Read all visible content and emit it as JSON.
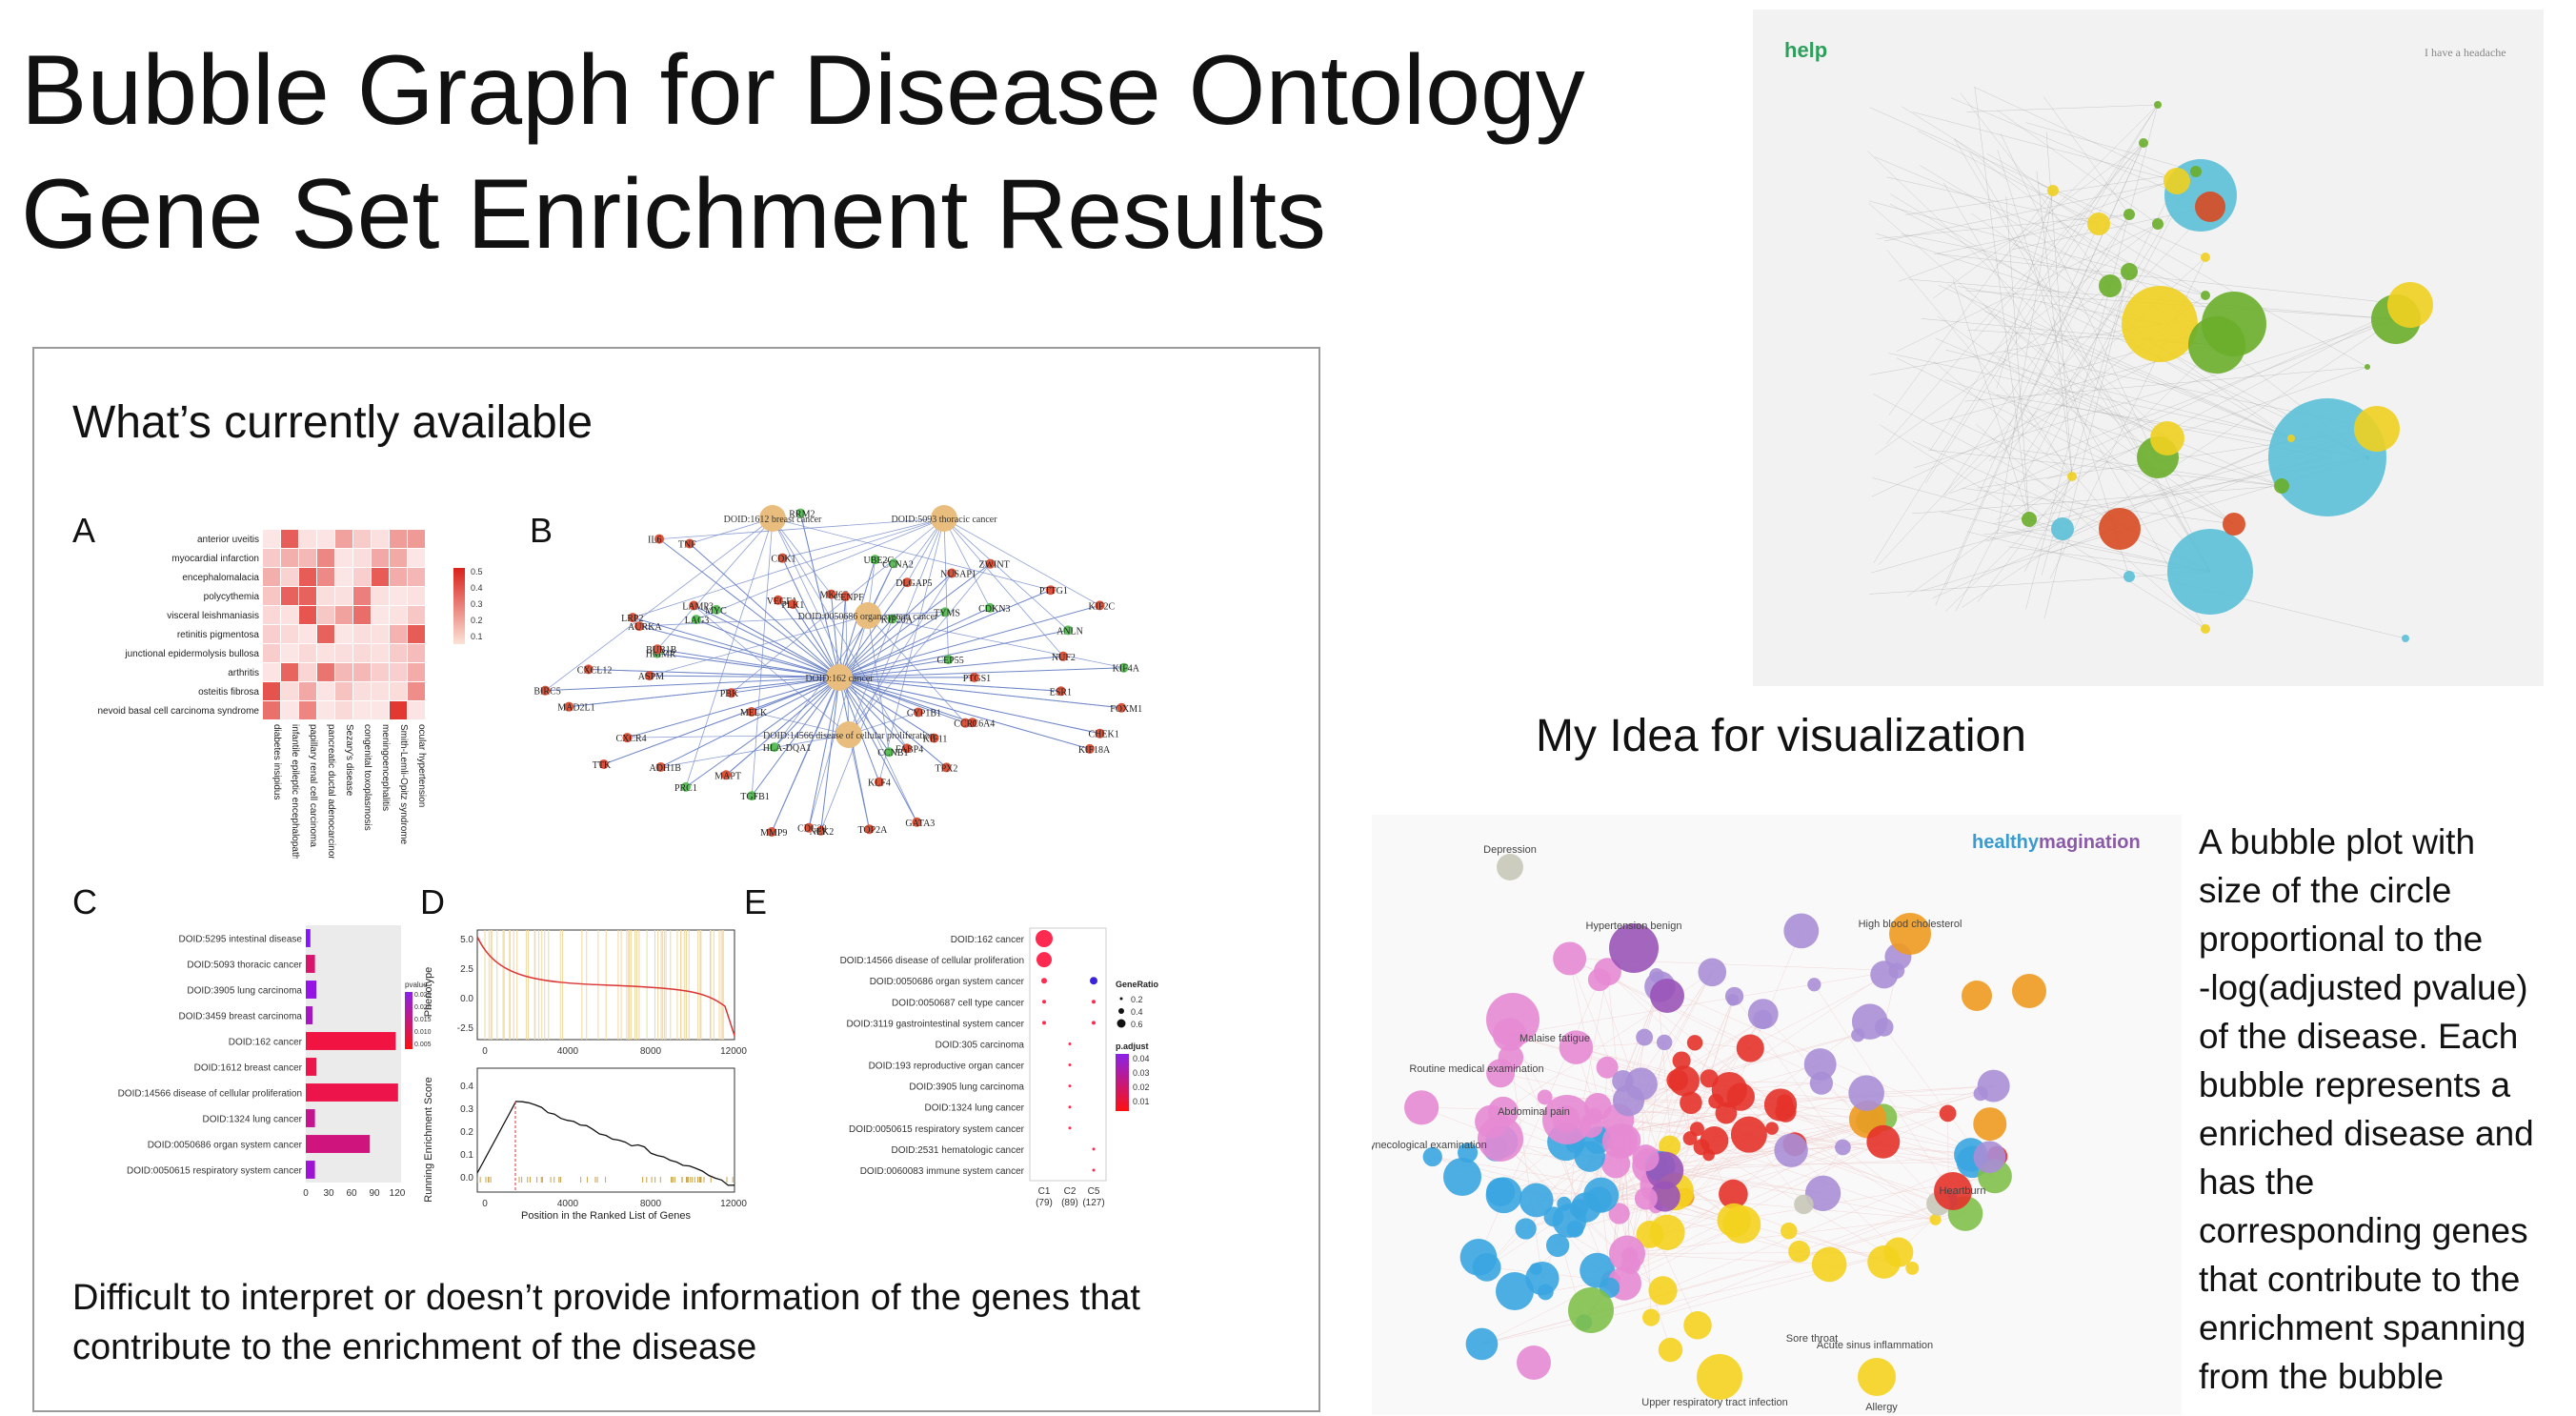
{
  "title": {
    "line1": "Bubble Graph for Disease Ontology",
    "line2": "Gene Set Enrichment Results"
  },
  "current_panel": {
    "heading": "What’s currently available",
    "labels": [
      "A",
      "B",
      "C",
      "D",
      "E"
    ],
    "caption_line1": "Difficult to interpret or doesn’t provide information of the genes that",
    "caption_line2": "contribute to the enrichment of the disease"
  },
  "heatmap": {
    "rows": [
      "anterior uveitis",
      "myocardial infarction",
      "encephalomalacia",
      "polycythemia",
      "visceral leishmaniasis",
      "retinitis pigmentosa",
      "junctional epidermolysis bullosa",
      "arthritis",
      "osteitis fibrosa",
      "nevoid basal cell carcinoma syndrome"
    ],
    "cols": [
      "diabetes insipidus",
      "infantile epileptic encephalopathy",
      "papillary renal cell carcinoma",
      "pancreatic ductal adenocarcinoma",
      "Sezary's disease",
      "congenital toxoplasmosis",
      "meningoencephalitis",
      "Smith-Lemli-Opitz syndrome",
      "ocular hypertension"
    ],
    "legend_ticks": [
      "0.5",
      "0.4",
      "0.3",
      "0.2",
      "0.1"
    ],
    "color": "#e0302a"
  },
  "network": {
    "center_nodes": [
      "DOID:162 cancer",
      "DOID:1612 breast cancer",
      "DOID:5093 thoracic cancer",
      "DOID:0050686 organ system cancer",
      "DOID:14566 disease of cellular proliferation"
    ],
    "genes": [
      "PTGS1",
      "ESR1",
      "FOXM1",
      "CHEK1",
      "KIF18A",
      "SLC6A4",
      "CCR1",
      "CYP1B1",
      "KIF11",
      "TPX2",
      "FABP4",
      "CCNB1",
      "GATA3",
      "KLF4",
      "TOP2A",
      "NEK2",
      "CDC20",
      "MMP9",
      "TGFB1",
      "HLA-DQA1",
      "MAPT",
      "PRC1",
      "ADH1B",
      "MELK",
      "TTK",
      "CXCR4",
      "PBK",
      "MAD2L1",
      "BIRC5",
      "ASPM",
      "CXCL12",
      "HMMR",
      "BUB1B",
      "AURKA",
      "LRP2",
      "LAG3",
      "LAMP3",
      "MYC",
      "IL6",
      "TNF",
      "VEGFA",
      "PLK1",
      "CDK1",
      "RRM2",
      "MKI67",
      "CENPF",
      "UBE2C",
      "CCNA2",
      "DLGAP5",
      "KIF20A",
      "NUSAP1",
      "ZWINT",
      "TYMS",
      "CDKN3",
      "PTTG1",
      "KIF2C",
      "ANLN",
      "CEP55",
      "NUF2",
      "KIF4A"
    ],
    "gene_color_red": "#d9533a",
    "gene_color_green": "#5cbf5a",
    "center_color": "#e8bd7e",
    "edge_color": "#6f86c9"
  },
  "barplot": {
    "categories": [
      "DOID:5295  intestinal disease",
      "DOID:5093  thoracic cancer",
      "DOID:3905  lung carcinoma",
      "DOID:3459  breast carcinoma",
      "DOID:162  cancer",
      "DOID:1612  breast cancer",
      "DOID:14566  disease of cellular proliferation",
      "DOID:1324  lung cancer",
      "DOID:0050686  organ system cancer",
      "DOID:0050615  respiratory system cancer"
    ],
    "values": [
      6,
      12,
      14,
      9,
      118,
      14,
      121,
      12,
      84,
      12
    ],
    "pvalue": [
      0.025,
      0.008,
      0.022,
      0.018,
      0.003,
      0.004,
      0.004,
      0.012,
      0.01,
      0.02
    ],
    "xticks": [
      "0",
      "30",
      "60",
      "90",
      "120"
    ],
    "xlim": [
      0,
      125
    ],
    "legend_title": "pvalue",
    "legend_ticks": [
      "0.025",
      "0.020",
      "0.015",
      "0.010",
      "0.005"
    ]
  },
  "gsea": {
    "top_ylabel": "Phenotype",
    "top_yticks": [
      "5.0",
      "2.5",
      "0.0",
      "-2.5"
    ],
    "bottom_ylabel": "Running Enrichment Score",
    "bottom_yticks": [
      "0.4",
      "0.3",
      "0.2",
      "0.1",
      "0.0"
    ],
    "xticks": [
      "0",
      "4000",
      "8000",
      "12000"
    ],
    "xlabel": "Position in the Ranked List of Genes"
  },
  "dotplot": {
    "rows": [
      "DOID:162 cancer",
      "DOID:14566 disease of cellular proliferation",
      "DOID:0050686 organ system cancer",
      "DOID:0050687 cell type cancer",
      "DOID:3119 gastrointestinal system cancer",
      "DOID:305 carcinoma",
      "DOID:193 reproductive organ cancer",
      "DOID:3905 lung carcinoma",
      "DOID:1324 lung cancer",
      "DOID:0050615 respiratory system cancer",
      "DOID:2531 hematologic cancer",
      "DOID:0060083 immune system cancer"
    ],
    "cols": [
      "C1\n(79)",
      "C2\n(89)",
      "C5\n(127)"
    ],
    "col_names": [
      "C1",
      "C2",
      "C5"
    ],
    "col_counts": [
      "(79)",
      "(89)",
      "(127)"
    ],
    "legend_gene_ratio": "GeneRatio",
    "gene_ratio_ticks": [
      "0.2",
      "0.4",
      "0.6"
    ],
    "legend_padjust": "p.adjust",
    "padjust_ticks": [
      "0.04",
      "0.03",
      "0.02",
      "0.01"
    ]
  },
  "idea": {
    "title": "My Idea for visualization",
    "screenshot1_left_text": "help",
    "screenshot1_right_text": "I have a headache",
    "screenshot2_brand_part1": "healthy",
    "screenshot2_brand_part2": "magination",
    "bubble_labels": [
      "Depression",
      "Hypertension benign",
      "High blood cholesterol",
      "Routine medical examination",
      "Malaise fatigue",
      "Abdominal pain",
      "Gynecological examination",
      "Heartburn",
      "Acute sinus inflammation",
      "Sore throat",
      "Upper respiratory tract infection",
      "Allergy"
    ]
  },
  "description": {
    "lines": [
      "A bubble plot with",
      "size of the circle",
      "proportional to the",
      "-log(adjusted pvalue)",
      "of the disease.  Each",
      "bubble represents a",
      "enriched disease and",
      "has the",
      "corresponding genes",
      "that contribute to the",
      "enrichment spanning",
      "from the bubble"
    ]
  }
}
